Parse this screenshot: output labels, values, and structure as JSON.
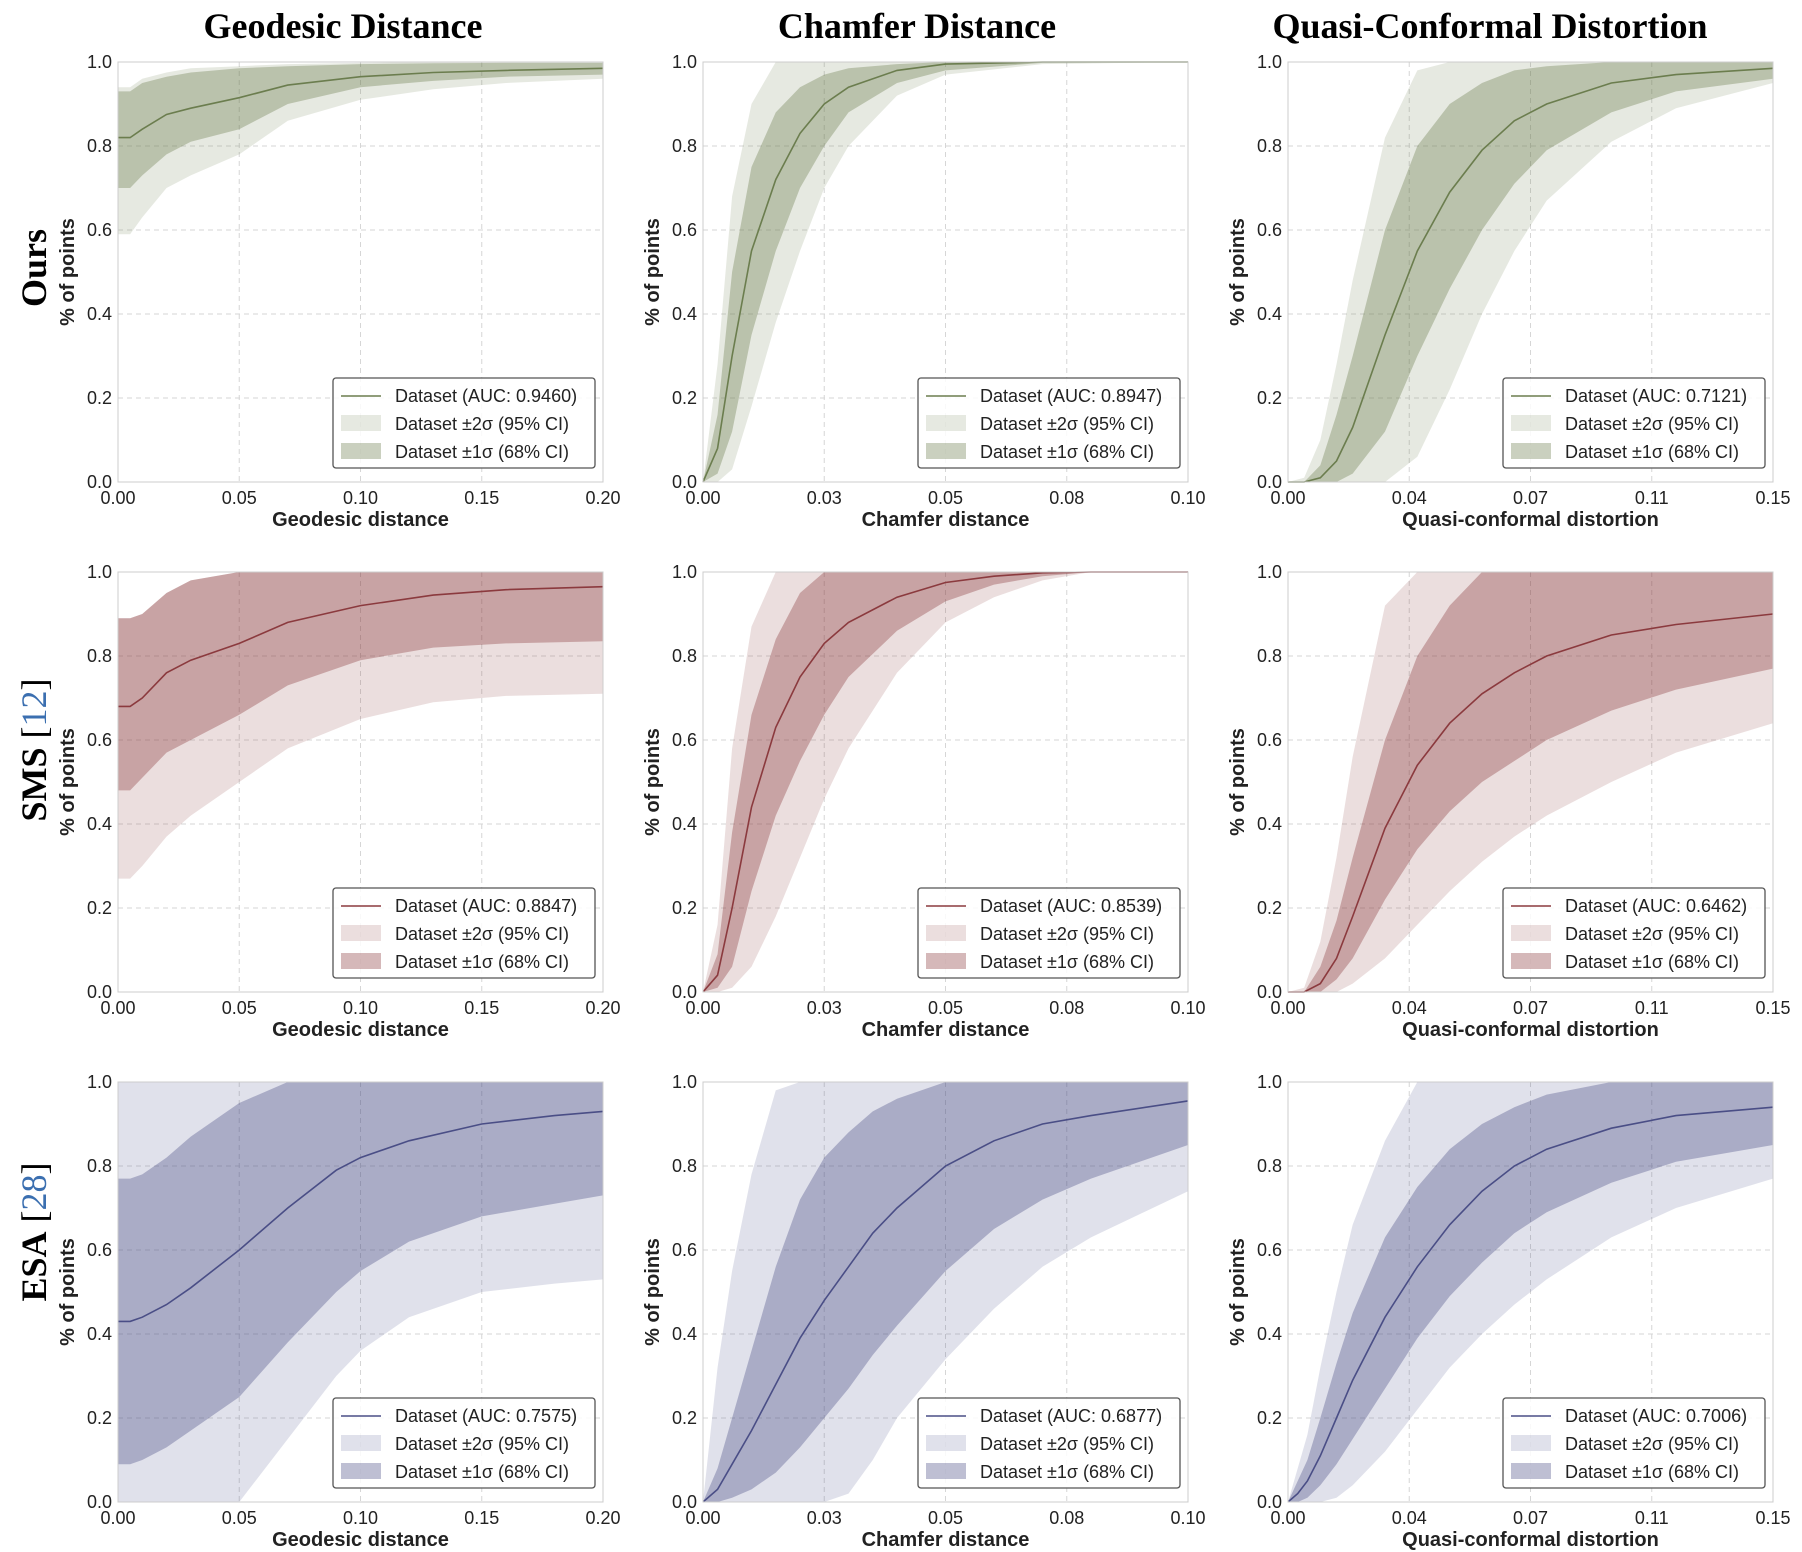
{
  "column_titles": [
    "Geodesic Distance",
    "Chamfer Distance",
    "Quasi-Conformal Distortion"
  ],
  "row_titles": [
    {
      "method": "Ours",
      "ref_open": "",
      "ref_num": "",
      "ref_close": ""
    },
    {
      "method": "SMS",
      "ref_open": " [",
      "ref_num": "12",
      "ref_close": "]"
    },
    {
      "method": "ESA",
      "ref_open": " [",
      "ref_num": "28",
      "ref_close": "]"
    }
  ],
  "colors": {
    "ours": "#6b7d4e",
    "sms": "#8b3a3e",
    "esa": "#4a4e86",
    "ref_link": "#3b6fb0",
    "grid": "#d6d6d6",
    "axes": "#cccccc"
  },
  "legend_labels": {
    "sigma2": "Dataset ±2σ (95% CI)",
    "sigma1": "Dataset ±1σ (68% CI)"
  },
  "chart_data": [
    {
      "type": "line",
      "row": 0,
      "col": 0,
      "color_key": "ours",
      "xlabel": "Geodesic distance",
      "ylabel": "% of points",
      "xlim": [
        0,
        0.2
      ],
      "ylim": [
        0,
        1
      ],
      "xticks": [
        "0.00",
        "0.05",
        "0.10",
        "0.15",
        "0.20"
      ],
      "yticks": [
        "0.0",
        "0.2",
        "0.4",
        "0.6",
        "0.8",
        "1.0"
      ],
      "legend": "Dataset (AUC: 0.9460)",
      "x": [
        0,
        0.005,
        0.01,
        0.02,
        0.03,
        0.05,
        0.07,
        0.1,
        0.13,
        0.16,
        0.2
      ],
      "y": [
        0.82,
        0.82,
        0.84,
        0.875,
        0.89,
        0.915,
        0.945,
        0.965,
        0.975,
        0.98,
        0.985
      ],
      "band1_lo": [
        0.7,
        0.7,
        0.73,
        0.78,
        0.81,
        0.84,
        0.9,
        0.94,
        0.955,
        0.965,
        0.97
      ],
      "band1_hi": [
        0.93,
        0.93,
        0.95,
        0.965,
        0.975,
        0.985,
        0.99,
        0.995,
        0.997,
        0.998,
        0.998
      ],
      "band2_lo": [
        0.59,
        0.59,
        0.63,
        0.7,
        0.73,
        0.78,
        0.86,
        0.91,
        0.935,
        0.95,
        0.96
      ],
      "band2_hi": [
        0.94,
        0.94,
        0.96,
        0.975,
        0.985,
        0.99,
        0.995,
        0.998,
        1.0,
        1.0,
        1.0
      ]
    },
    {
      "type": "line",
      "row": 0,
      "col": 1,
      "color_key": "ours",
      "xlabel": "Chamfer distance",
      "ylabel": "% of points",
      "xlim": [
        0,
        0.1
      ],
      "ylim": [
        0,
        1
      ],
      "xticks": [
        "0.00",
        "0.03",
        "0.05",
        "0.08",
        "0.10"
      ],
      "yticks": [
        "0.0",
        "0.2",
        "0.4",
        "0.6",
        "0.8",
        "1.0"
      ],
      "legend": "Dataset (AUC: 0.8947)",
      "x": [
        0,
        0.003,
        0.006,
        0.01,
        0.015,
        0.02,
        0.025,
        0.03,
        0.04,
        0.05,
        0.07,
        0.1
      ],
      "y": [
        0,
        0.08,
        0.3,
        0.55,
        0.72,
        0.83,
        0.9,
        0.94,
        0.98,
        0.995,
        1.0,
        1.0
      ],
      "band1_lo": [
        0,
        0.02,
        0.12,
        0.35,
        0.55,
        0.7,
        0.8,
        0.88,
        0.95,
        0.98,
        0.998,
        1.0
      ],
      "band1_hi": [
        0,
        0.16,
        0.5,
        0.75,
        0.88,
        0.94,
        0.97,
        0.985,
        0.995,
        1.0,
        1.0,
        1.0
      ],
      "band2_lo": [
        0,
        0,
        0.03,
        0.18,
        0.38,
        0.55,
        0.7,
        0.8,
        0.92,
        0.97,
        0.995,
        1.0
      ],
      "band2_hi": [
        0,
        0.28,
        0.68,
        0.9,
        1.0,
        1.0,
        1.0,
        1.0,
        1.0,
        1.0,
        1.0,
        1.0
      ]
    },
    {
      "type": "line",
      "row": 0,
      "col": 2,
      "color_key": "ours",
      "xlabel": "Quasi-conformal distortion",
      "ylabel": "% of points",
      "xlim": [
        0,
        0.15
      ],
      "ylim": [
        0,
        1
      ],
      "xticks": [
        "0.00",
        "0.04",
        "0.07",
        "0.11",
        "0.15"
      ],
      "yticks": [
        "0.0",
        "0.2",
        "0.4",
        "0.6",
        "0.8",
        "1.0"
      ],
      "legend": "Dataset (AUC: 0.7121)",
      "x": [
        0,
        0.005,
        0.01,
        0.015,
        0.02,
        0.03,
        0.04,
        0.05,
        0.06,
        0.07,
        0.08,
        0.1,
        0.12,
        0.15
      ],
      "y": [
        0,
        0,
        0.01,
        0.05,
        0.13,
        0.35,
        0.55,
        0.69,
        0.79,
        0.86,
        0.9,
        0.95,
        0.97,
        0.985
      ],
      "band1_lo": [
        0,
        0,
        0,
        0,
        0.02,
        0.12,
        0.3,
        0.46,
        0.6,
        0.71,
        0.79,
        0.88,
        0.93,
        0.96
      ],
      "band1_hi": [
        0,
        0,
        0.04,
        0.16,
        0.3,
        0.6,
        0.8,
        0.9,
        0.95,
        0.98,
        0.99,
        1.0,
        1.0,
        1.0
      ],
      "band2_lo": [
        0,
        0,
        0,
        0,
        0,
        0,
        0.06,
        0.22,
        0.4,
        0.55,
        0.67,
        0.81,
        0.89,
        0.95
      ],
      "band2_hi": [
        0,
        0.01,
        0.1,
        0.28,
        0.48,
        0.82,
        0.98,
        1.0,
        1.0,
        1.0,
        1.0,
        1.0,
        1.0,
        1.0
      ]
    },
    {
      "type": "line",
      "row": 1,
      "col": 0,
      "color_key": "sms",
      "xlabel": "Geodesic distance",
      "ylabel": "% of points",
      "xlim": [
        0,
        0.2
      ],
      "ylim": [
        0,
        1
      ],
      "xticks": [
        "0.00",
        "0.05",
        "0.10",
        "0.15",
        "0.20"
      ],
      "yticks": [
        "0.0",
        "0.2",
        "0.4",
        "0.6",
        "0.8",
        "1.0"
      ],
      "legend": "Dataset (AUC: 0.8847)",
      "x": [
        0,
        0.005,
        0.01,
        0.02,
        0.03,
        0.05,
        0.07,
        0.1,
        0.13,
        0.16,
        0.2
      ],
      "y": [
        0.68,
        0.68,
        0.7,
        0.76,
        0.79,
        0.83,
        0.88,
        0.92,
        0.945,
        0.958,
        0.965
      ],
      "band1_lo": [
        0.48,
        0.48,
        0.51,
        0.57,
        0.6,
        0.66,
        0.73,
        0.79,
        0.82,
        0.83,
        0.835
      ],
      "band1_hi": [
        0.89,
        0.89,
        0.9,
        0.95,
        0.98,
        1.0,
        1.0,
        1.0,
        1.0,
        1.0,
        1.0
      ],
      "band2_lo": [
        0.27,
        0.27,
        0.3,
        0.37,
        0.42,
        0.5,
        0.58,
        0.65,
        0.69,
        0.705,
        0.71
      ],
      "band2_hi": [
        0.89,
        0.89,
        0.9,
        0.95,
        0.98,
        1.0,
        1.0,
        1.0,
        1.0,
        1.0,
        1.0
      ]
    },
    {
      "type": "line",
      "row": 1,
      "col": 1,
      "color_key": "sms",
      "xlabel": "Chamfer distance",
      "ylabel": "% of points",
      "xlim": [
        0,
        0.1
      ],
      "ylim": [
        0,
        1
      ],
      "xticks": [
        "0.00",
        "0.03",
        "0.05",
        "0.08",
        "0.10"
      ],
      "yticks": [
        "0.0",
        "0.2",
        "0.4",
        "0.6",
        "0.8",
        "1.0"
      ],
      "legend": "Dataset (AUC: 0.8539)",
      "x": [
        0,
        0.003,
        0.006,
        0.01,
        0.015,
        0.02,
        0.025,
        0.03,
        0.04,
        0.05,
        0.06,
        0.07,
        0.08,
        0.1
      ],
      "y": [
        0,
        0.04,
        0.2,
        0.44,
        0.63,
        0.75,
        0.83,
        0.88,
        0.94,
        0.975,
        0.99,
        0.998,
        1.0,
        1.0
      ],
      "band1_lo": [
        0,
        0.01,
        0.06,
        0.24,
        0.42,
        0.55,
        0.66,
        0.75,
        0.86,
        0.93,
        0.97,
        0.99,
        1.0,
        1.0
      ],
      "band1_hi": [
        0,
        0.09,
        0.38,
        0.66,
        0.84,
        0.95,
        1.0,
        1.0,
        1.0,
        1.0,
        1.0,
        1.0,
        1.0,
        1.0
      ],
      "band2_lo": [
        0,
        0,
        0.01,
        0.06,
        0.18,
        0.32,
        0.46,
        0.58,
        0.76,
        0.88,
        0.94,
        0.98,
        1.0,
        1.0
      ],
      "band2_hi": [
        0,
        0.16,
        0.58,
        0.87,
        1.0,
        1.0,
        1.0,
        1.0,
        1.0,
        1.0,
        1.0,
        1.0,
        1.0,
        1.0
      ]
    },
    {
      "type": "line",
      "row": 1,
      "col": 2,
      "color_key": "sms",
      "xlabel": "Quasi-conformal distortion",
      "ylabel": "% of points",
      "xlim": [
        0,
        0.15
      ],
      "ylim": [
        0,
        1
      ],
      "xticks": [
        "0.00",
        "0.04",
        "0.07",
        "0.11",
        "0.15"
      ],
      "yticks": [
        "0.0",
        "0.2",
        "0.4",
        "0.6",
        "0.8",
        "1.0"
      ],
      "legend": "Dataset (AUC: 0.6462)",
      "x": [
        0,
        0.005,
        0.01,
        0.015,
        0.02,
        0.03,
        0.04,
        0.05,
        0.06,
        0.07,
        0.08,
        0.1,
        0.12,
        0.15
      ],
      "y": [
        0,
        0,
        0.02,
        0.08,
        0.18,
        0.39,
        0.54,
        0.64,
        0.71,
        0.76,
        0.8,
        0.85,
        0.875,
        0.9
      ],
      "band1_lo": [
        0,
        0,
        0,
        0.03,
        0.08,
        0.22,
        0.34,
        0.43,
        0.5,
        0.55,
        0.6,
        0.67,
        0.72,
        0.77
      ],
      "band1_hi": [
        0,
        0,
        0.06,
        0.17,
        0.32,
        0.6,
        0.8,
        0.92,
        1.0,
        1.0,
        1.0,
        1.0,
        1.0,
        1.0
      ],
      "band2_lo": [
        0,
        0,
        0,
        0,
        0.02,
        0.08,
        0.16,
        0.24,
        0.31,
        0.37,
        0.42,
        0.5,
        0.57,
        0.64
      ],
      "band2_hi": [
        0,
        0.01,
        0.12,
        0.32,
        0.56,
        0.92,
        1.0,
        1.0,
        1.0,
        1.0,
        1.0,
        1.0,
        1.0,
        1.0
      ]
    },
    {
      "type": "line",
      "row": 2,
      "col": 0,
      "color_key": "esa",
      "xlabel": "Geodesic distance",
      "ylabel": "% of points",
      "xlim": [
        0,
        0.2
      ],
      "ylim": [
        0,
        1
      ],
      "xticks": [
        "0.00",
        "0.05",
        "0.10",
        "0.15",
        "0.20"
      ],
      "yticks": [
        "0.0",
        "0.2",
        "0.4",
        "0.6",
        "0.8",
        "1.0"
      ],
      "legend": "Dataset (AUC: 0.7575)",
      "x": [
        0,
        0.005,
        0.01,
        0.02,
        0.03,
        0.05,
        0.07,
        0.09,
        0.1,
        0.12,
        0.15,
        0.18,
        0.2
      ],
      "y": [
        0.43,
        0.43,
        0.44,
        0.47,
        0.51,
        0.6,
        0.7,
        0.79,
        0.82,
        0.86,
        0.9,
        0.92,
        0.93
      ],
      "band1_lo": [
        0.09,
        0.09,
        0.1,
        0.13,
        0.17,
        0.25,
        0.38,
        0.5,
        0.55,
        0.62,
        0.68,
        0.71,
        0.73
      ],
      "band1_hi": [
        0.77,
        0.77,
        0.78,
        0.82,
        0.87,
        0.95,
        1.0,
        1.0,
        1.0,
        1.0,
        1.0,
        1.0,
        1.0
      ],
      "band2_lo": [
        0,
        0,
        0,
        0,
        0,
        0,
        0.15,
        0.3,
        0.36,
        0.44,
        0.5,
        0.52,
        0.53
      ],
      "band2_hi": [
        1.0,
        1.0,
        1.0,
        1.0,
        1.0,
        1.0,
        1.0,
        1.0,
        1.0,
        1.0,
        1.0,
        1.0,
        1.0
      ]
    },
    {
      "type": "line",
      "row": 2,
      "col": 1,
      "color_key": "esa",
      "xlabel": "Chamfer distance",
      "ylabel": "% of points",
      "xlim": [
        0,
        0.1
      ],
      "ylim": [
        0,
        1
      ],
      "xticks": [
        "0.00",
        "0.03",
        "0.05",
        "0.08",
        "0.10"
      ],
      "yticks": [
        "0.0",
        "0.2",
        "0.4",
        "0.6",
        "0.8",
        "1.0"
      ],
      "legend": "Dataset (AUC: 0.6877)",
      "x": [
        0,
        0.003,
        0.006,
        0.01,
        0.015,
        0.02,
        0.025,
        0.03,
        0.035,
        0.04,
        0.05,
        0.06,
        0.07,
        0.08,
        0.1
      ],
      "y": [
        0,
        0.03,
        0.09,
        0.17,
        0.28,
        0.39,
        0.48,
        0.56,
        0.64,
        0.7,
        0.8,
        0.86,
        0.9,
        0.92,
        0.955
      ],
      "band1_lo": [
        0,
        0,
        0.01,
        0.03,
        0.07,
        0.13,
        0.2,
        0.27,
        0.35,
        0.42,
        0.55,
        0.65,
        0.72,
        0.77,
        0.85
      ],
      "band1_hi": [
        0,
        0.08,
        0.2,
        0.36,
        0.56,
        0.72,
        0.82,
        0.88,
        0.93,
        0.96,
        1.0,
        1.0,
        1.0,
        1.0,
        1.0
      ],
      "band2_lo": [
        0,
        0,
        0,
        0,
        0,
        0,
        0,
        0.02,
        0.1,
        0.2,
        0.34,
        0.46,
        0.56,
        0.63,
        0.74
      ],
      "band2_hi": [
        0,
        0.32,
        0.55,
        0.78,
        0.98,
        1.0,
        1.0,
        1.0,
        1.0,
        1.0,
        1.0,
        1.0,
        1.0,
        1.0,
        1.0
      ]
    },
    {
      "type": "line",
      "row": 2,
      "col": 2,
      "color_key": "esa",
      "xlabel": "Quasi-conformal distortion",
      "ylabel": "% of points",
      "xlim": [
        0,
        0.15
      ],
      "ylim": [
        0,
        1
      ],
      "xticks": [
        "0.00",
        "0.04",
        "0.07",
        "0.11",
        "0.15"
      ],
      "yticks": [
        "0.0",
        "0.2",
        "0.4",
        "0.6",
        "0.8",
        "1.0"
      ],
      "legend": "Dataset (AUC: 0.7006)",
      "x": [
        0,
        0.003,
        0.006,
        0.01,
        0.015,
        0.02,
        0.03,
        0.04,
        0.05,
        0.06,
        0.07,
        0.08,
        0.1,
        0.12,
        0.15
      ],
      "y": [
        0,
        0.02,
        0.05,
        0.11,
        0.2,
        0.29,
        0.44,
        0.56,
        0.66,
        0.74,
        0.8,
        0.84,
        0.89,
        0.92,
        0.94
      ],
      "band1_lo": [
        0,
        0,
        0.01,
        0.04,
        0.09,
        0.15,
        0.27,
        0.39,
        0.49,
        0.57,
        0.64,
        0.69,
        0.76,
        0.81,
        0.85
      ],
      "band1_hi": [
        0,
        0.05,
        0.1,
        0.2,
        0.33,
        0.45,
        0.63,
        0.75,
        0.84,
        0.9,
        0.94,
        0.97,
        1.0,
        1.0,
        1.0
      ],
      "band2_lo": [
        0,
        0,
        0,
        0,
        0.01,
        0.04,
        0.12,
        0.22,
        0.32,
        0.4,
        0.47,
        0.53,
        0.63,
        0.7,
        0.77
      ],
      "band2_hi": [
        0,
        0.08,
        0.16,
        0.32,
        0.5,
        0.66,
        0.86,
        1.0,
        1.0,
        1.0,
        1.0,
        1.0,
        1.0,
        1.0,
        1.0
      ]
    }
  ]
}
